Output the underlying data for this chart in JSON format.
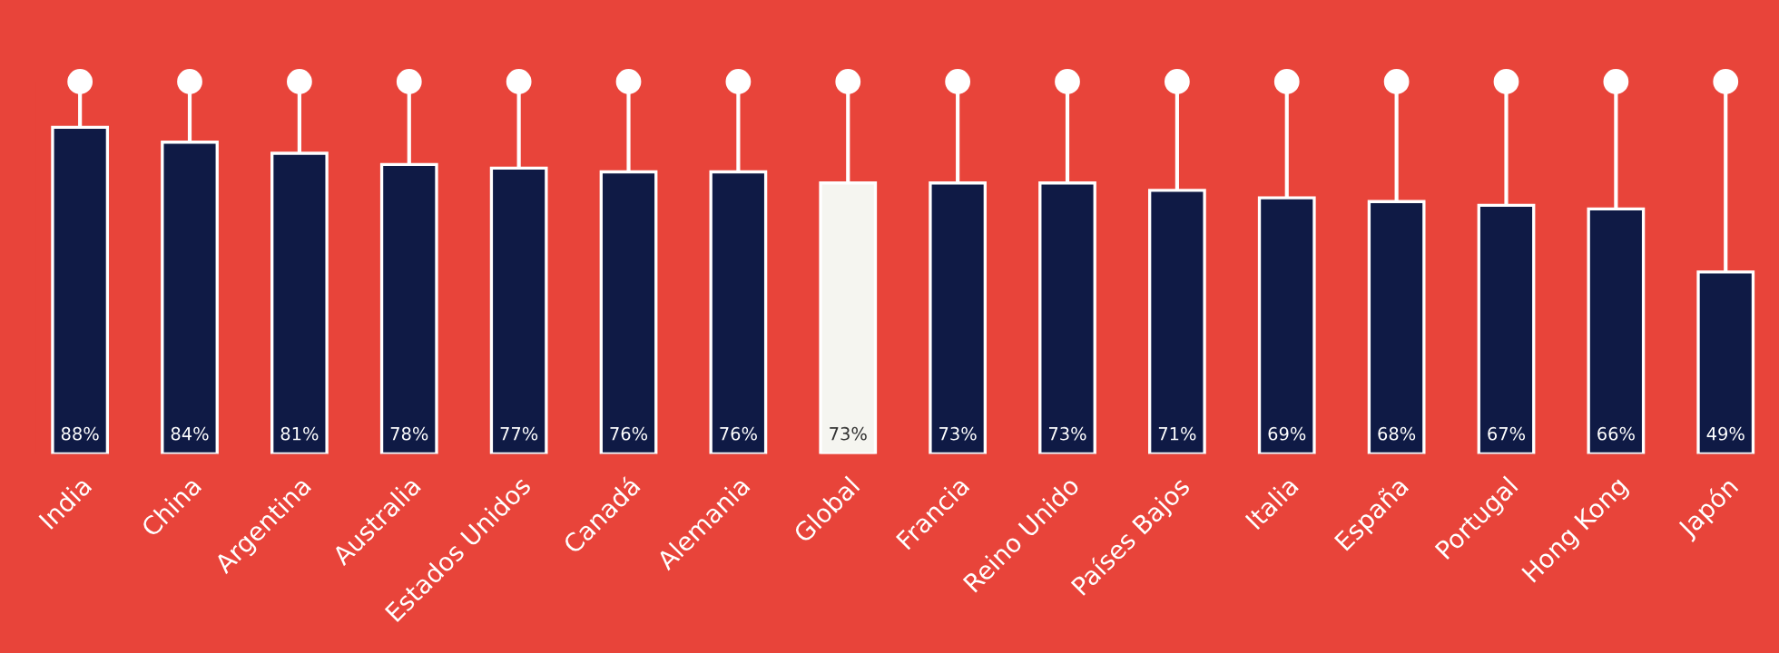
{
  "chart_data": {
    "type": "bar",
    "categories": [
      "India",
      "China",
      "Argentina",
      "Australia",
      "Estados Unidos",
      "Canadá",
      "Alemania",
      "Global",
      "Francia",
      "Reino Unido",
      "Países Bajos",
      "Italia",
      "España",
      "Portugal",
      "Hong Kong",
      "Japón"
    ],
    "values": [
      88,
      84,
      81,
      78,
      77,
      76,
      76,
      73,
      73,
      73,
      71,
      69,
      68,
      67,
      66,
      49
    ],
    "colors": [
      "#0f1a45",
      "#0f1a45",
      "#0f1a45",
      "#0f1a45",
      "#0f1a45",
      "#0f1a45",
      "#0f1a45",
      "#f5f5f0",
      "#0f1a45",
      "#0f1a45",
      "#0f1a45",
      "#0f1a45",
      "#0f1a45",
      "#0f1a45",
      "#0f1a45",
      "#0f1a45"
    ],
    "value_labels": [
      "88%",
      "84%",
      "81%",
      "78%",
      "77%",
      "76%",
      "76%",
      "73%",
      "73%",
      "73%",
      "71%",
      "69%",
      "68%",
      "67%",
      "66%",
      "49%"
    ]
  }
}
